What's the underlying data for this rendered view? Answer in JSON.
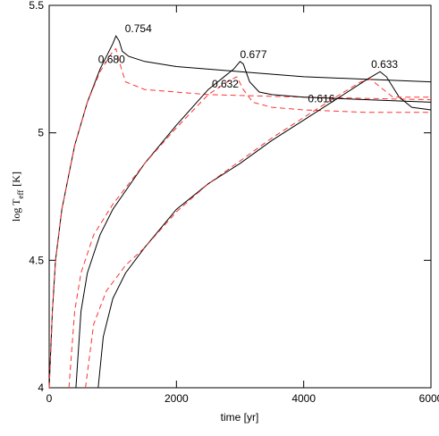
{
  "chart_data": {
    "type": "line",
    "xlabel": "time [yr]",
    "ylabel": {
      "main": "log T",
      "sub": "eff",
      "unit": "[K]"
    },
    "xlim": [
      0,
      6000
    ],
    "xticks": [
      0,
      2000,
      4000,
      6000
    ],
    "ylim": [
      4,
      5.5
    ],
    "yticks": [
      4,
      4.5,
      5,
      5.5
    ],
    "grid": false,
    "series": [
      {
        "name": "0.754",
        "color": "#000000",
        "dash": false,
        "x": [
          0,
          50,
          100,
          200,
          400,
          600,
          800,
          1000,
          1050,
          1100,
          1150,
          1250,
          1500,
          2000,
          3000,
          4000,
          5000,
          6000
        ],
        "values": [
          4.0,
          4.3,
          4.5,
          4.7,
          4.95,
          5.12,
          5.25,
          5.35,
          5.38,
          5.36,
          5.32,
          5.3,
          5.28,
          5.26,
          5.24,
          5.22,
          5.21,
          5.2
        ]
      },
      {
        "name": "0.680",
        "color": "#ff3030",
        "dash": true,
        "x": [
          0,
          50,
          100,
          200,
          400,
          600,
          800,
          1000,
          1050,
          1100,
          1200,
          1500,
          2500,
          4000,
          6000
        ],
        "values": [
          4.0,
          4.3,
          4.5,
          4.7,
          4.95,
          5.12,
          5.24,
          5.32,
          5.33,
          5.28,
          5.2,
          5.17,
          5.15,
          5.14,
          5.13
        ]
      },
      {
        "name": "0.677",
        "color": "#000000",
        "dash": false,
        "x": [
          420,
          500,
          600,
          800,
          1000,
          1500,
          2000,
          2500,
          2900,
          3000,
          3050,
          3150,
          3300,
          3500,
          4000,
          5000,
          6000
        ],
        "values": [
          4.0,
          4.3,
          4.45,
          4.6,
          4.7,
          4.88,
          5.03,
          5.17,
          5.25,
          5.28,
          5.27,
          5.2,
          5.16,
          5.15,
          5.14,
          5.13,
          5.12
        ]
      },
      {
        "name": "0.632",
        "color": "#ff3030",
        "dash": true,
        "x": [
          310,
          400,
          500,
          700,
          1000,
          1500,
          2000,
          2500,
          2800,
          2950,
          3050,
          3200,
          3500,
          4000,
          5000,
          6000
        ],
        "values": [
          4.0,
          4.3,
          4.45,
          4.6,
          4.72,
          4.88,
          5.02,
          5.15,
          5.2,
          5.22,
          5.17,
          5.12,
          5.1,
          5.09,
          5.08,
          5.08
        ]
      },
      {
        "name": "0.633",
        "color": "#000000",
        "dash": false,
        "x": [
          770,
          850,
          1000,
          1200,
          1500,
          2000,
          2500,
          3000,
          3500,
          4000,
          4500,
          5000,
          5200,
          5300,
          5500,
          5700,
          6000
        ],
        "values": [
          4.0,
          4.2,
          4.35,
          4.45,
          4.55,
          4.7,
          4.8,
          4.88,
          4.97,
          5.05,
          5.13,
          5.21,
          5.24,
          5.22,
          5.14,
          5.1,
          5.09
        ]
      },
      {
        "name": "0.616",
        "color": "#ff3030",
        "dash": true,
        "x": [
          570,
          700,
          900,
          1200,
          1500,
          2000,
          2500,
          3000,
          3500,
          4000,
          4500,
          4900,
          5050,
          5200,
          5400,
          6000
        ],
        "values": [
          4.0,
          4.25,
          4.38,
          4.48,
          4.55,
          4.69,
          4.8,
          4.89,
          4.98,
          5.06,
          5.14,
          5.2,
          5.21,
          5.18,
          5.14,
          5.14
        ]
      }
    ]
  }
}
